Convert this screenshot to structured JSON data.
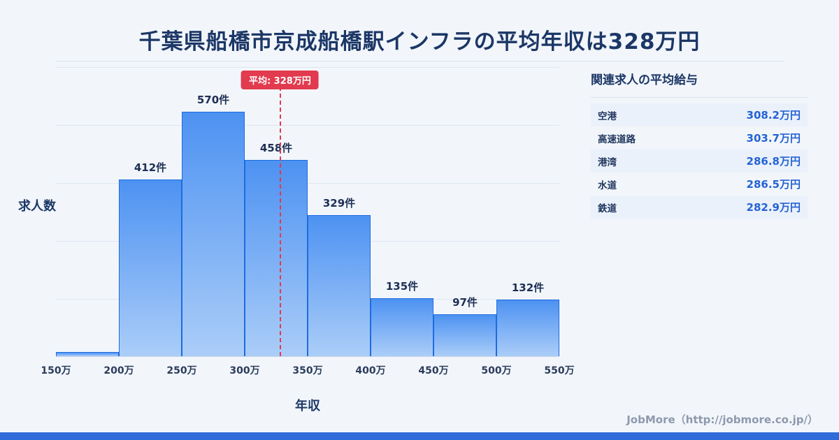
{
  "page": {
    "title": "千葉県船橋市京成船橋駅インフラの平均年収は328万円",
    "footer_credit": "JobMore（http://jobmore.co.jp/）"
  },
  "chart_data": {
    "type": "bar",
    "title": "千葉県船橋市京成船橋駅インフラの平均年収は328万円",
    "xlabel": "年収",
    "ylabel": "求人数",
    "x_range": [
      150,
      550
    ],
    "x_tick_labels": [
      "150万",
      "200万",
      "250万",
      "300万",
      "350万",
      "400万",
      "450万",
      "500万",
      "550万"
    ],
    "grid": "horizontal",
    "bins": [
      {
        "x_start": 150,
        "x_end": 200,
        "count": 10,
        "count_label": ""
      },
      {
        "x_start": 200,
        "x_end": 250,
        "count": 412,
        "count_label": "412件"
      },
      {
        "x_start": 250,
        "x_end": 300,
        "count": 570,
        "count_label": "570件"
      },
      {
        "x_start": 300,
        "x_end": 350,
        "count": 458,
        "count_label": "458件"
      },
      {
        "x_start": 350,
        "x_end": 400,
        "count": 329,
        "count_label": "329件"
      },
      {
        "x_start": 400,
        "x_end": 450,
        "count": 135,
        "count_label": "135件"
      },
      {
        "x_start": 450,
        "x_end": 500,
        "count": 97,
        "count_label": "97件"
      },
      {
        "x_start": 500,
        "x_end": 550,
        "count": 132,
        "count_label": "132件"
      }
    ],
    "average": {
      "value": 328,
      "label": "平均: 328万円"
    }
  },
  "side_table": {
    "heading": "関連求人の平均給与",
    "rows": [
      {
        "label": "空港",
        "value": "308.2万円"
      },
      {
        "label": "高速道路",
        "value": "303.7万円"
      },
      {
        "label": "港湾",
        "value": "286.8万円"
      },
      {
        "label": "水道",
        "value": "286.5万円"
      },
      {
        "label": "鉄道",
        "value": "282.9万円"
      }
    ]
  },
  "colors": {
    "accent_red": "#e23a4e",
    "bar_top": "#4d92f2",
    "bar_bottom": "#abcdf8",
    "bar_border": "#1e6ce0",
    "value_blue": "#2563d4",
    "navy": "#1c3766",
    "row_alt_bg": "#eaf1fb",
    "footer_strip": "#2f6cda"
  }
}
